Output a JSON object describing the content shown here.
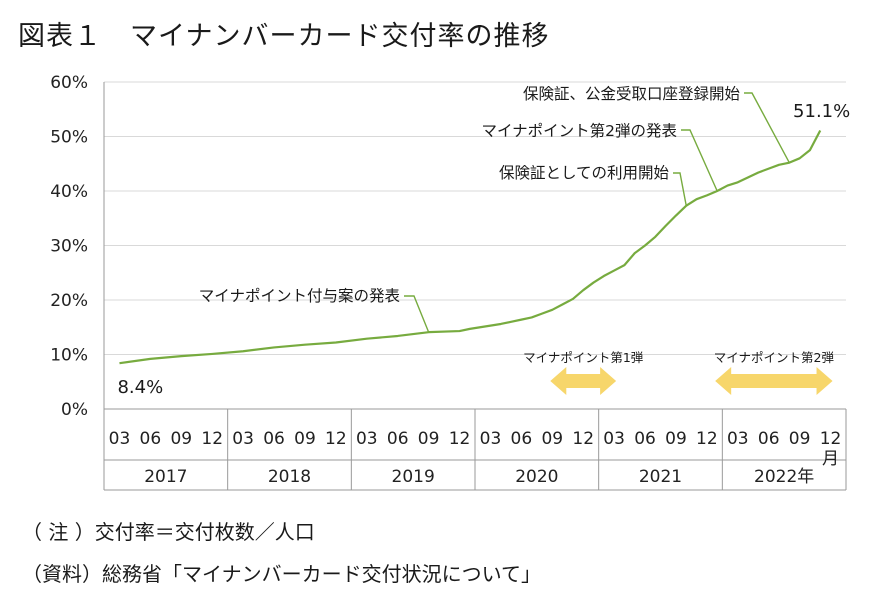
{
  "title": "図表１　マイナンバーカード交付率の推移",
  "chart_data": {
    "type": "line",
    "ylim": [
      0,
      60
    ],
    "y_ticks": [
      "0%",
      "10%",
      "20%",
      "30%",
      "40%",
      "50%",
      "60%"
    ],
    "y_tick_values": [
      0,
      10,
      20,
      30,
      40,
      50,
      60
    ],
    "grid": "horizontal",
    "x_month_labels": [
      "03",
      "06",
      "09",
      "12"
    ],
    "x_last_month_suffix": "月",
    "x_years": [
      "2017",
      "2018",
      "2019",
      "2020",
      "2021",
      "2022年"
    ],
    "line_color": "#77ab3f",
    "x": [
      "2017-03",
      "2017-06",
      "2017-09",
      "2017-12",
      "2018-03",
      "2018-06",
      "2018-09",
      "2018-12",
      "2019-03",
      "2019-06",
      "2019-09",
      "2019-12",
      "2020-01",
      "2020-02",
      "2020-03",
      "2020-04",
      "2020-05",
      "2020-06",
      "2020-07",
      "2020-08",
      "2020-09",
      "2020-10",
      "2020-11",
      "2020-12",
      "2021-01",
      "2021-02",
      "2021-03",
      "2021-04",
      "2021-05",
      "2021-06",
      "2021-07",
      "2021-08",
      "2021-09",
      "2021-10",
      "2021-11",
      "2021-12",
      "2022-01",
      "2022-02",
      "2022-03",
      "2022-04",
      "2022-05",
      "2022-06",
      "2022-07",
      "2022-08",
      "2022-09",
      "2022-10",
      "2022-11"
    ],
    "values": [
      8.4,
      9.2,
      9.7,
      10.1,
      10.6,
      11.3,
      11.8,
      12.2,
      12.9,
      13.4,
      14.1,
      14.3,
      14.7,
      15.0,
      15.3,
      15.6,
      16.0,
      16.4,
      16.8,
      17.5,
      18.2,
      19.2,
      20.2,
      21.8,
      23.2,
      24.4,
      25.4,
      26.4,
      28.6,
      30.0,
      31.6,
      33.6,
      35.5,
      37.3,
      38.5,
      39.2,
      40.0,
      41.0,
      41.6,
      42.5,
      43.4,
      44.1,
      44.8,
      45.2,
      46.0,
      47.5,
      51.1
    ],
    "data_labels": {
      "first": "8.4%",
      "last": "51.1%"
    },
    "annotations": [
      {
        "text": "マイナポイント付与案の発表",
        "point": "2019-09"
      },
      {
        "text": "保険証としての利用開始",
        "point": "2021-10"
      },
      {
        "text": "マイナポイント第2弾の発表",
        "point": "2022-01"
      },
      {
        "text": "保険証、公金受取口座登録開始",
        "point": "2022-08"
      }
    ],
    "campaigns": [
      {
        "label": "マイナポイント第1弾",
        "from": "2020-09",
        "to": "2021-03",
        "color": "#f7d66b"
      },
      {
        "label": "マイナポイント第2弾",
        "from": "2022-01",
        "to": "2022-12",
        "color": "#f7d66b"
      }
    ]
  },
  "notes": [
    "（ 注 ）交付率＝交付枚数／人口",
    "（資料）総務省「マイナンバーカード交付状況について」"
  ]
}
